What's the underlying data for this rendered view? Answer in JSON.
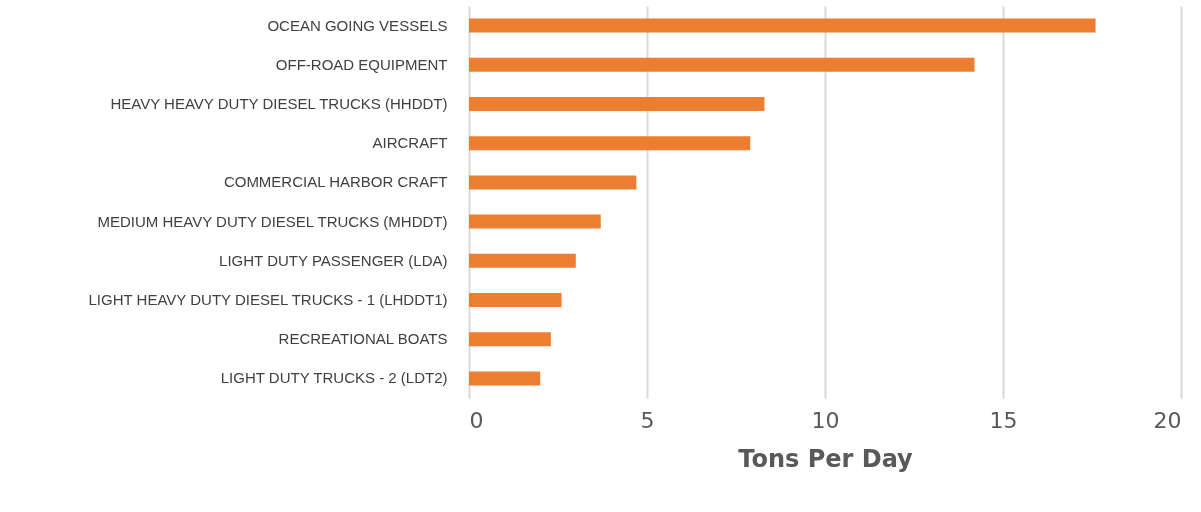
{
  "chart_data": {
    "type": "bar",
    "orientation": "horizontal",
    "xlabel": "Tons Per Day",
    "categories": [
      "OCEAN GOING VESSELS",
      "OFF-ROAD EQUIPMENT",
      "HEAVY HEAVY DUTY DIESEL TRUCKS (HHDDT)",
      "AIRCRAFT",
      "COMMERCIAL HARBOR CRAFT",
      "MEDIUM HEAVY DUTY DIESEL TRUCKS (MHDDT)",
      "LIGHT DUTY PASSENGER (LDA)",
      "LIGHT HEAVY DUTY DIESEL TRUCKS - 1 (LHDDT1)",
      "RECREATIONAL BOATS",
      "LIGHT DUTY TRUCKS - 2 (LDT2)"
    ],
    "values": [
      17.6,
      14.2,
      8.3,
      7.9,
      4.7,
      3.7,
      3.0,
      2.6,
      2.3,
      2.0
    ],
    "color": "#ed7d31",
    "xlim": [
      0,
      20
    ],
    "xticks": [
      0,
      5,
      10,
      15,
      20
    ],
    "grid": "x"
  }
}
